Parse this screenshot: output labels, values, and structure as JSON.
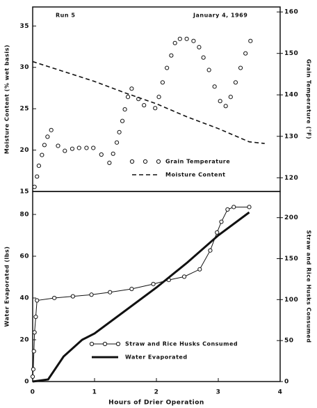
{
  "chart_data": [
    {
      "type": "line",
      "title": "Run 5",
      "subtitle": "January 4, 1969",
      "y_label": "Moisture Content (% wet basis)",
      "y2_label": "Grain Temperature (°F)",
      "xlim": [
        0,
        4
      ],
      "ylim": [
        15,
        37.3
      ],
      "yticks": [
        15,
        20,
        25,
        30,
        35
      ],
      "y2lim": [
        116.7,
        161.2
      ],
      "y2ticks": [
        120,
        130,
        140,
        150,
        160
      ],
      "legend": "lower center",
      "series": [
        {
          "name": "Grain Temperature",
          "axis": "y2",
          "color": "#111111",
          "line": "none",
          "marker": "circle",
          "x": [
            0.03,
            0.07,
            0.1,
            0.15,
            0.19,
            0.24,
            0.3,
            0.41,
            0.52,
            0.64,
            0.75,
            0.87,
            0.98,
            1.11,
            1.24,
            1.3,
            1.36,
            1.4,
            1.45,
            1.49,
            1.54,
            1.6,
            1.71,
            1.8,
            1.98,
            2.04,
            2.1,
            2.17,
            2.24,
            2.3,
            2.38,
            2.49,
            2.6,
            2.69,
            2.76,
            2.85,
            2.94,
            3.03,
            3.12,
            3.2,
            3.28,
            3.36,
            3.44,
            3.52
          ],
          "values": [
            117.8,
            120.3,
            122.9,
            125.5,
            127.9,
            129.9,
            131.5,
            127.7,
            126.5,
            127,
            127.2,
            127.2,
            127.2,
            125.6,
            123.6,
            125.8,
            128.5,
            131,
            133.7,
            136.5,
            139.5,
            141.5,
            139,
            137.5,
            136.8,
            139.5,
            143,
            146.5,
            149.5,
            152.5,
            153.5,
            153.5,
            153,
            151.5,
            149,
            146,
            142,
            138.5,
            137.3,
            139.5,
            143,
            146.5,
            150,
            153
          ]
        },
        {
          "name": "Moisture Content",
          "axis": "y",
          "color": "#111111",
          "line": "dashed",
          "marker": "none",
          "x": [
            0,
            0.5,
            1,
            1.5,
            2,
            2.5,
            3,
            3.5,
            3.75
          ],
          "values": [
            30.7,
            29.5,
            28.3,
            26.9,
            25.6,
            24.0,
            22.6,
            21.0,
            20.8
          ]
        }
      ]
    },
    {
      "type": "line",
      "x_label": "Hours of Drier Operation",
      "y_label": "Water Evaporated (lbs)",
      "y2_label": "Straw and Rice Husks Consumed",
      "xlim": [
        0,
        4
      ],
      "xticks": [
        0,
        1,
        2,
        3,
        4
      ],
      "ylim": [
        0,
        91
      ],
      "yticks": [
        0,
        20,
        40,
        60,
        80
      ],
      "y2lim": [
        0,
        232
      ],
      "y2ticks": [
        0,
        50,
        100,
        150,
        200
      ],
      "legend": "lower center",
      "series": [
        {
          "name": "Straw and Rice Husks Consumed",
          "axis": "y2",
          "color": "#111111",
          "line": "solid",
          "marker": "circle",
          "x": [
            0,
            0.01,
            0.02,
            0.03,
            0.05,
            0.07,
            0.35,
            0.65,
            0.95,
            1.25,
            1.6,
            1.95,
            2.2,
            2.45,
            2.7,
            2.87,
            2.98,
            3.05,
            3.15,
            3.25,
            3.5
          ],
          "values": [
            6,
            15,
            37,
            60,
            79,
            99,
            102,
            104,
            106,
            109,
            113,
            119,
            124,
            128,
            137,
            160,
            182,
            195,
            210,
            213,
            213
          ]
        },
        {
          "name": "Water Evaporated",
          "axis": "y",
          "color": "#111111",
          "line": "thick",
          "marker": "none",
          "x": [
            0,
            0.25,
            0.5,
            0.8,
            1.0,
            1.5,
            2.0,
            2.5,
            3.0,
            3.5
          ],
          "values": [
            0,
            1,
            12,
            20,
            23,
            34,
            45,
            57,
            70,
            81
          ]
        }
      ]
    }
  ]
}
